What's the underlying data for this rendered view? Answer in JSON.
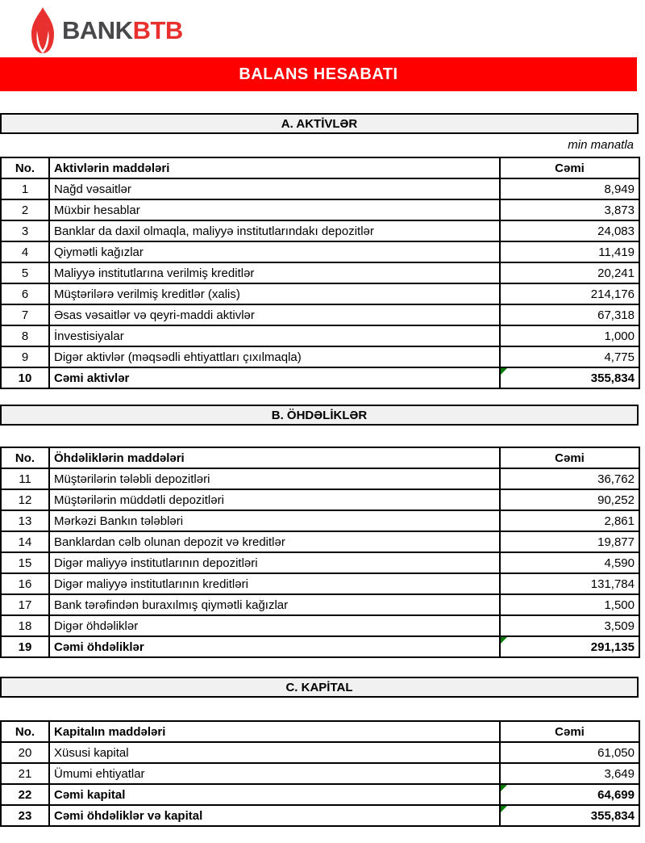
{
  "logo": {
    "bank": "BANK",
    "btb": "BTB"
  },
  "banner": {
    "title": "BALANS HESABATI"
  },
  "note": {
    "unit": "min manatla"
  },
  "colors": {
    "banner_red": "#ff0000",
    "logo_red": "#e8312e",
    "logo_gray": "#48484b",
    "band_gray": "#f1f1f1",
    "marker_green": "#007b00"
  },
  "sections": [
    {
      "title": "A. AKTİVLƏR",
      "columns": {
        "no": "No.",
        "name": "Aktivlərin maddələri",
        "total": "Cəmi"
      },
      "rows": [
        {
          "no": "1",
          "name": "Nağd vəsaitlər",
          "value": "8,949",
          "bold": false,
          "marker": false
        },
        {
          "no": "2",
          "name": "Müxbir hesablar",
          "value": "3,873",
          "bold": false,
          "marker": false
        },
        {
          "no": "3",
          "name": "Banklar da daxil olmaqla, maliyyə institutlarındakı depozitlər",
          "value": "24,083",
          "bold": false,
          "marker": false
        },
        {
          "no": "4",
          "name": "Qiymətli kağızlar",
          "value": "11,419",
          "bold": false,
          "marker": false
        },
        {
          "no": "5",
          "name": "Maliyyə institutlarına verilmiş kreditlər",
          "value": "20,241",
          "bold": false,
          "marker": false
        },
        {
          "no": "6",
          "name": "Müştərilərə verilmiş kreditlər (xalis)",
          "value": "214,176",
          "bold": false,
          "marker": false
        },
        {
          "no": "7",
          "name": "Əsas vəsaitlər və qeyri-maddi aktivlər",
          "value": "67,318",
          "bold": false,
          "marker": false
        },
        {
          "no": "8",
          "name": "İnvestisiyalar",
          "value": "1,000",
          "bold": false,
          "marker": false
        },
        {
          "no": "9",
          "name": "Digər aktivlər (məqsədli ehtiyattları çıxılmaqla)",
          "value": "4,775",
          "bold": false,
          "marker": false
        },
        {
          "no": "10",
          "name": "Cəmi aktivlər",
          "value": "355,834",
          "bold": true,
          "marker": true
        }
      ]
    },
    {
      "title": "B. ÖHDƏLİKLƏR",
      "columns": {
        "no": "No.",
        "name": "Öhdəliklərin maddələri",
        "total": "Cəmi"
      },
      "rows": [
        {
          "no": "11",
          "name": "Müştərilərin tələbli depozitləri",
          "value": "36,762",
          "bold": false,
          "marker": false
        },
        {
          "no": "12",
          "name": "Müştərilərin müddətli depozitləri",
          "value": "90,252",
          "bold": false,
          "marker": false
        },
        {
          "no": "13",
          "name": "Mərkəzi Bankın tələbləri",
          "value": "2,861",
          "bold": false,
          "marker": false
        },
        {
          "no": "14",
          "name": "Banklardan cəlb olunan depozit və kreditlər",
          "value": "19,877",
          "bold": false,
          "marker": false
        },
        {
          "no": "15",
          "name": "Digər maliyyə institutlarının depozitləri",
          "value": "4,590",
          "bold": false,
          "marker": false
        },
        {
          "no": "16",
          "name": "Digər maliyyə institutlarının kreditləri",
          "value": "131,784",
          "bold": false,
          "marker": false
        },
        {
          "no": "17",
          "name": "Bank tərəfindən buraxılmış qiymətli kağızlar",
          "value": "1,500",
          "bold": false,
          "marker": false
        },
        {
          "no": "18",
          "name": "Digər öhdəliklər",
          "value": "3,509",
          "bold": false,
          "marker": false
        },
        {
          "no": "19",
          "name": "Cəmi öhdəliklər",
          "value": "291,135",
          "bold": true,
          "marker": true
        }
      ]
    },
    {
      "title": "C. KAPİTAL",
      "columns": {
        "no": "No.",
        "name": "Kapitalın maddələri",
        "total": "Cəmi"
      },
      "rows": [
        {
          "no": "20",
          "name": "Xüsusi kapital",
          "value": "61,050",
          "bold": false,
          "marker": false
        },
        {
          "no": "21",
          "name": "Ümumi ehtiyatlar",
          "value": "3,649",
          "bold": false,
          "marker": false
        },
        {
          "no": "22",
          "name": "Cəmi kapital",
          "value": "64,699",
          "bold": true,
          "marker": true
        },
        {
          "no": "23",
          "name": "Cəmi öhdəliklər və kapital",
          "value": "355,834",
          "bold": true,
          "marker": true
        }
      ]
    }
  ]
}
